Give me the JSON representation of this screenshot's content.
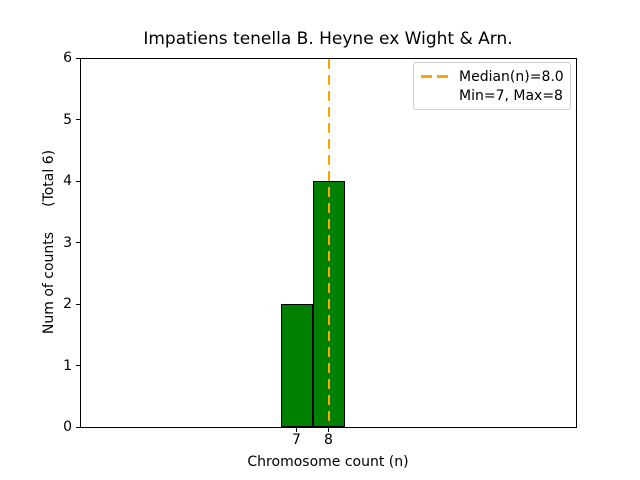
{
  "figure": {
    "background": "#ffffff"
  },
  "chart_data": {
    "type": "bar",
    "title": "Impatiens tenella B. Heyne ex Wight & Arn.",
    "xlabel": "Chromosome count (n)",
    "ylabel": "Num of counts",
    "ylabel_annotation": "(Total 6)",
    "categories": [
      7,
      8
    ],
    "values": [
      2,
      4
    ],
    "total_counts": 6,
    "xticks": [
      7,
      8
    ],
    "yticks": [
      0,
      1,
      2,
      3,
      4,
      5,
      6
    ],
    "ylim": [
      0,
      6
    ],
    "bar_width_units": 1,
    "grid": false,
    "bar_color": "#008000",
    "bar_edge_color": "#000000",
    "median_line": {
      "value": 8.0,
      "color": "#FFA500",
      "style": "dashed",
      "orientation": "vertical"
    },
    "legend": {
      "position": "upper right",
      "entries": [
        {
          "label": "Median(n)=8.0",
          "handle": "dashed-line",
          "color": "#FFA500"
        },
        {
          "label": "Min=7, Max=8",
          "handle": "none",
          "color": ""
        }
      ]
    }
  }
}
